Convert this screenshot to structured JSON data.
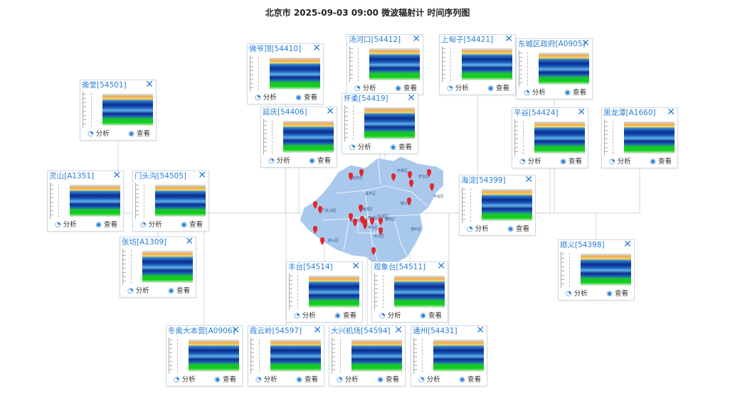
{
  "page": {
    "title": "北京市 2025-09-03 09:00 微波辐射计 时间序列图"
  },
  "labels": {
    "analyze": "分析",
    "view": "查看"
  },
  "colors": {
    "accent": "#2a7fd6",
    "map_fill": "#a9c9ec",
    "marker": "#e3262a"
  },
  "icons": {
    "analyze": "pie-chart-icon",
    "view": "eye-icon",
    "close": "close-icon",
    "marker": "map-pin-icon"
  },
  "stations": [
    {
      "name": "斋堂[54501]"
    },
    {
      "name": "佛爷顶[54410]"
    },
    {
      "name": "汤河口[54412]"
    },
    {
      "name": "上甸子[54421]"
    },
    {
      "name": "东城区政府[A0905]"
    },
    {
      "name": "延庆[54406]"
    },
    {
      "name": "怀柔[54419]"
    },
    {
      "name": "平谷[54424]"
    },
    {
      "name": "黑龙潭[A1660]"
    },
    {
      "name": "灵山[A1351]"
    },
    {
      "name": "门头沟[54505]"
    },
    {
      "name": "海淀[54399]"
    },
    {
      "name": "张坊[A1309]"
    },
    {
      "name": "顺义[54398]"
    },
    {
      "name": "丰台[54514]"
    },
    {
      "name": "观象台[54511]"
    },
    {
      "name": "冬奥大本营[A0906]"
    },
    {
      "name": "霞云岭[54597]"
    },
    {
      "name": "大兴机场[54594]"
    },
    {
      "name": "通州[54431]"
    }
  ],
  "map": {
    "districts": [
      "延庆区",
      "怀柔区",
      "密云区",
      "昌平区",
      "平谷区",
      "顺义区",
      "门头沟区",
      "海淀区",
      "朝阳区",
      "石景山区",
      "丰台区",
      "房山区",
      "大兴区",
      "通州区",
      "东城区",
      "西城区"
    ]
  }
}
